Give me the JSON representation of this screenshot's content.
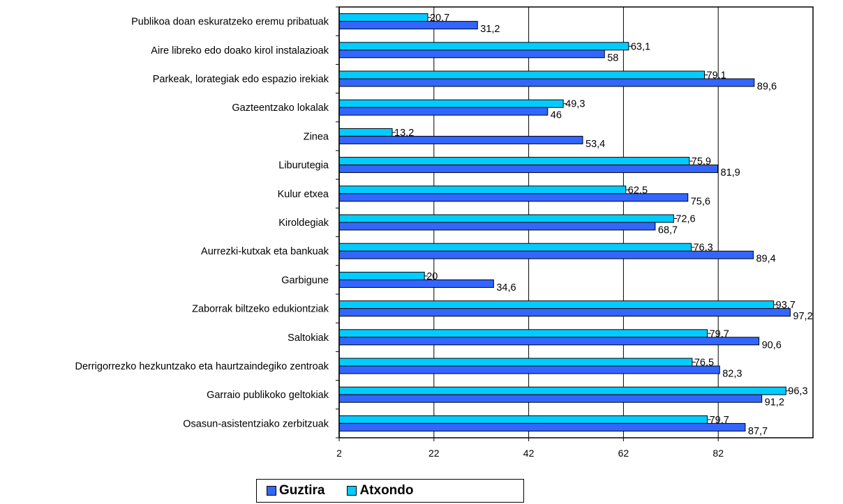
{
  "chart_data": {
    "type": "bar",
    "orientation": "horizontal",
    "categories": [
      "Publikoa doan eskuratzeko eremu pribatuak",
      "Aire libreko edo doako kirol instalazioak",
      "Parkeak, lorategiak edo espazio irekiak",
      "Gazteentzako lokalak",
      "Zinea",
      "Liburutegia",
      "Kulur etxea",
      "Kiroldegiak",
      "Aurrezki-kutxak eta bankuak",
      "Garbigune",
      "Zaborrak biltzeko edukiontziak",
      "Saltokiak",
      "Derrigorrezko hezkuntzako eta haurtzaindegiko zentroak",
      "Garraio publikoko geltokiak",
      "Osasun-asistentziako zerbitzuak"
    ],
    "series": [
      {
        "name": "Atxondo",
        "color": "#00ccff",
        "values": [
          20.7,
          63.1,
          79.1,
          49.3,
          13.2,
          75.9,
          62.5,
          72.6,
          76.3,
          20,
          93.7,
          79.7,
          76.5,
          96.3,
          79.7
        ],
        "labels": [
          "20,7",
          "63,1",
          "79,1",
          "49,3",
          "13,2",
          "75,9",
          "62,5",
          "72,6",
          "76,3",
          "20",
          "93,7",
          "79,7",
          "76,5",
          "96,3",
          "79,7"
        ]
      },
      {
        "name": "Guztira",
        "color": "#3366ff",
        "values": [
          31.2,
          58,
          89.6,
          46,
          53.4,
          81.9,
          75.6,
          68.7,
          89.4,
          34.6,
          97.2,
          90.6,
          82.3,
          91.2,
          87.7
        ],
        "labels": [
          "31,2",
          "58",
          "89,6",
          "46",
          "53,4",
          "81,9",
          "75,6",
          "68,7",
          "89,4",
          "34,6",
          "97,2",
          "90,6",
          "82,3",
          "91,2",
          "87,7"
        ]
      }
    ],
    "x_ticks": [
      2,
      22,
      42,
      62,
      82
    ],
    "xlim": [
      2,
      102
    ],
    "grid": "vertical major lines",
    "legend": {
      "position": "bottom",
      "entries": [
        "Guztira",
        "Atxondo"
      ]
    }
  }
}
